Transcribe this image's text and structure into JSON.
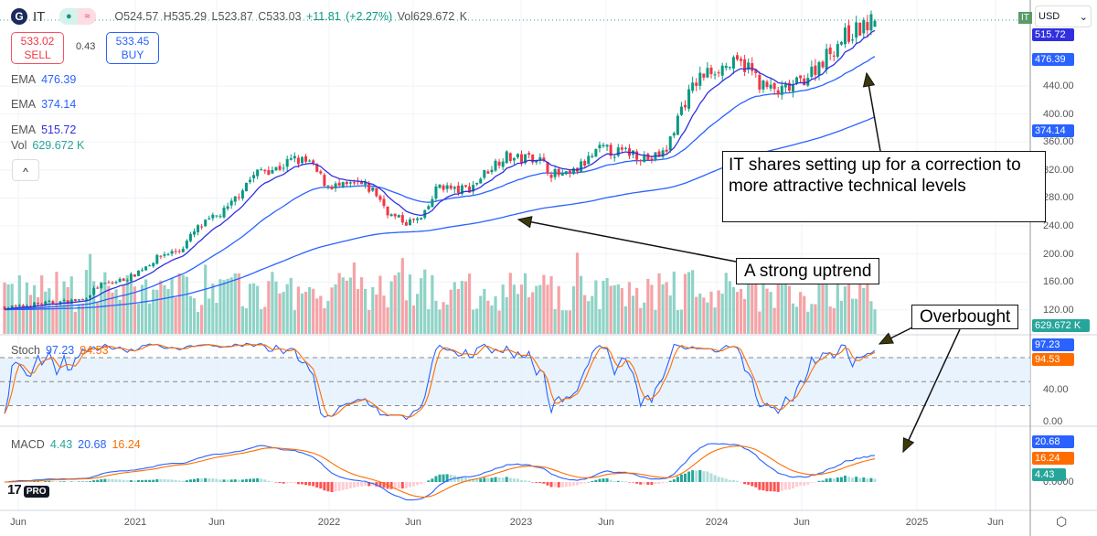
{
  "header": {
    "symbol": "IT",
    "open": "O524.57",
    "high": "H535.29",
    "low": "L523.87",
    "close": "C533.03",
    "change": "+11.81 (+2.27%)",
    "vol": "Vol629.672 K",
    "badge": "IT"
  },
  "trade": {
    "sell_price": "533.02",
    "sell_label": "SELL",
    "spread": "0.43",
    "buy_price": "533.45",
    "buy_label": "BUY"
  },
  "legend": {
    "ema_label": "EMA",
    "ema1": "476.39",
    "ema2": "374.14",
    "ema3": "515.72",
    "vol_label": "Vol",
    "vol": "629.672 K",
    "collapse": "^"
  },
  "stoch_legend": {
    "label": "Stoch",
    "k": "97.23",
    "d": "94.53"
  },
  "macd_legend": {
    "label": "MACD",
    "hist": "4.43",
    "macd": "20.68",
    "signal": "16.24"
  },
  "currency": "USD",
  "price_ticks": [
    "440.00",
    "400.00",
    "360.00",
    "320.00",
    "280.00",
    "240.00",
    "200.00",
    "160.00",
    "120.00"
  ],
  "stoch_ticks": [
    "40.00",
    "0.00"
  ],
  "macd_ticks": [
    "0.0000"
  ],
  "tags": {
    "ema3": "515.72",
    "ema1": "476.39",
    "ema2": "374.14",
    "vol": "629.672 K",
    "k": "97.23",
    "d": "94.53",
    "macd": "20.68",
    "signal": "16.24",
    "hist": "4.43"
  },
  "time_labels": [
    "Jun",
    "2021",
    "Jun",
    "2022",
    "Jun",
    "2023",
    "Jun",
    "2024",
    "Jun",
    "2025",
    "Jun"
  ],
  "annotations": {
    "correction": "IT shares setting up for a correction to more attractive technical levels",
    "uptrend": "A strong uptrend",
    "overbought": "Overbought"
  },
  "watermark": "TV PRO",
  "colors": {
    "up": "#089981",
    "down": "#f23645",
    "ema_fast": "#3030e0",
    "ema_mid": "#2962ff",
    "k": "#2962ff",
    "d": "#ff6d00"
  },
  "chart_data": {
    "type": "candlestick",
    "interval": "weekly",
    "series_note": "approximate monthly closes",
    "months": [
      "2020-06",
      "2020-07",
      "2020-08",
      "2020-09",
      "2020-10",
      "2020-11",
      "2020-12",
      "2021-01",
      "2021-02",
      "2021-03",
      "2021-04",
      "2021-05",
      "2021-06",
      "2021-07",
      "2021-08",
      "2021-09",
      "2021-10",
      "2021-11",
      "2021-12",
      "2022-01",
      "2022-02",
      "2022-03",
      "2022-04",
      "2022-05",
      "2022-06",
      "2022-07",
      "2022-08",
      "2022-09",
      "2022-10",
      "2022-11",
      "2022-12",
      "2023-01",
      "2023-02",
      "2023-03",
      "2023-04",
      "2023-05",
      "2023-06",
      "2023-07",
      "2023-08",
      "2023-09",
      "2023-10",
      "2023-11",
      "2023-12",
      "2024-01",
      "2024-02",
      "2024-03",
      "2024-04",
      "2024-05",
      "2024-06",
      "2024-07",
      "2024-08",
      "2024-09",
      "2024-10"
    ],
    "close": [
      124,
      128,
      130,
      132,
      135,
      155,
      160,
      168,
      185,
      200,
      205,
      235,
      250,
      265,
      300,
      320,
      322,
      335,
      330,
      300,
      295,
      300,
      290,
      255,
      245,
      250,
      300,
      290,
      295,
      320,
      340,
      335,
      340,
      315,
      310,
      330,
      350,
      345,
      345,
      335,
      345,
      410,
      450,
      465,
      470,
      470,
      440,
      430,
      440,
      460,
      485,
      510,
      533
    ],
    "price_range": [
      100,
      540
    ],
    "stoch_range": [
      0,
      100
    ],
    "stoch_bands": [
      20,
      50,
      80
    ]
  }
}
